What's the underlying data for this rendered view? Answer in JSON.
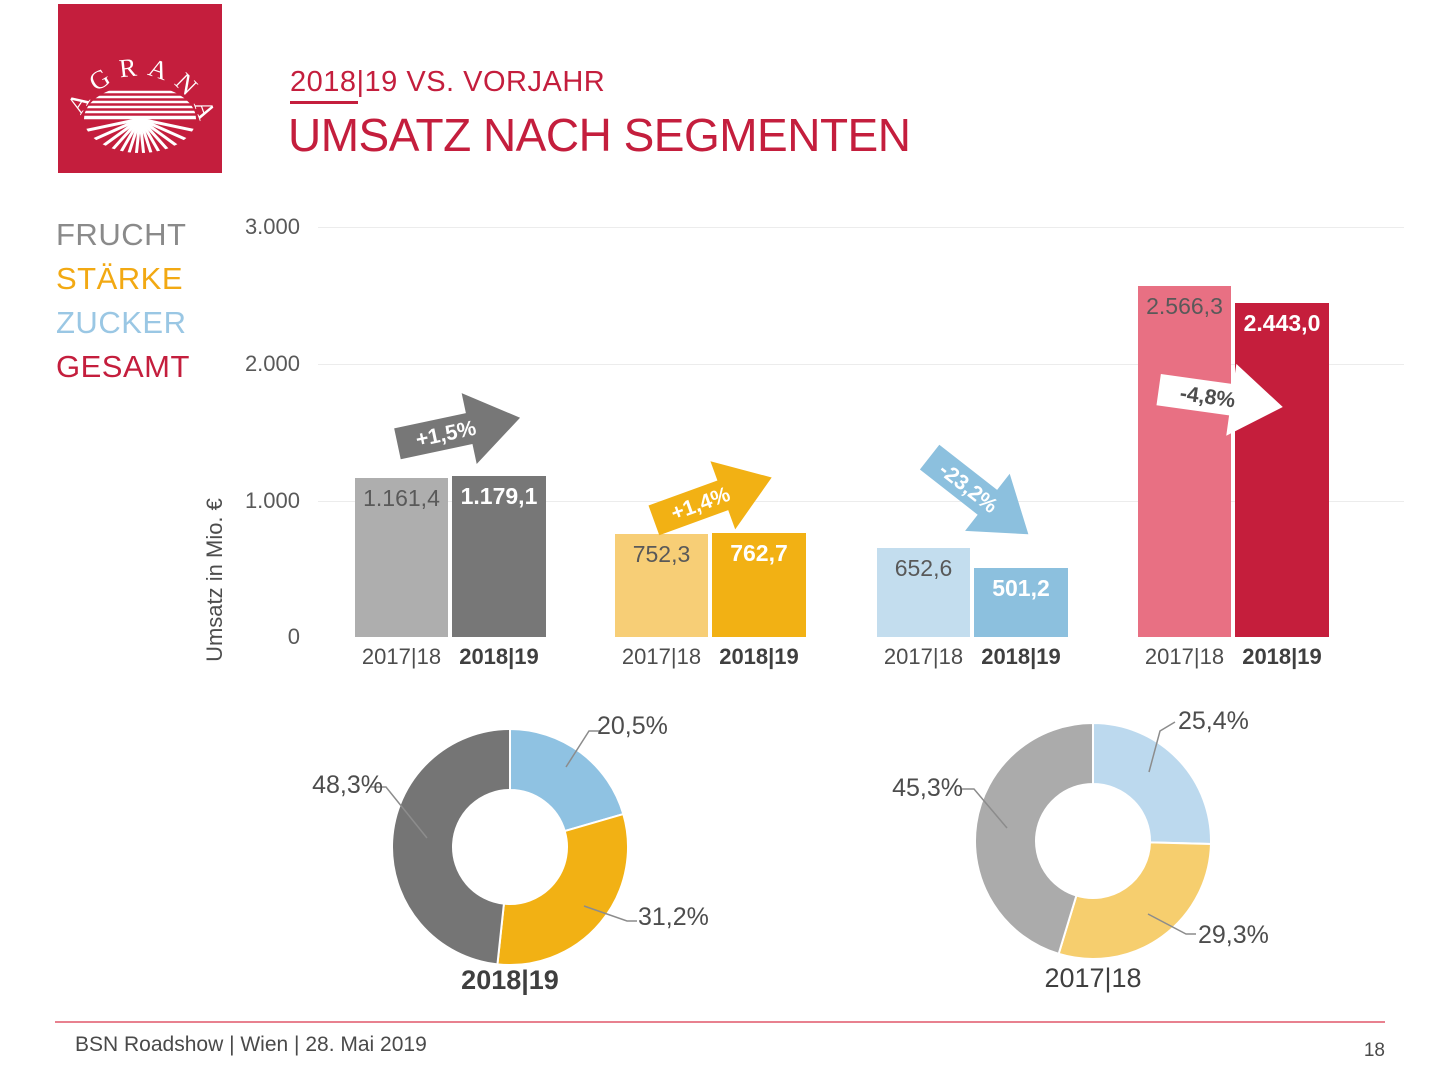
{
  "slide": {
    "logo_text": "AGRANA",
    "subtitle": "2018|19 VS. VORJAHR",
    "title": "UMSATZ NACH SEGMENTEN",
    "footer": "BSN Roadshow | Wien | 28. Mai 2019",
    "page_number": "18"
  },
  "colors": {
    "brand_red": "#C41E3D",
    "footer_line": "#E8818F",
    "grid": "#ECECEC",
    "text_dark": "#4D4D4D",
    "text_medium": "#595959"
  },
  "legend": {
    "items": [
      {
        "label": "FRUCHT",
        "color": "#8A8A8A"
      },
      {
        "label": "STÄRKE",
        "color": "#F2A913"
      },
      {
        "label": "ZUCKER",
        "color": "#9AC7E4"
      },
      {
        "label": "GESAMT",
        "color": "#C41E3D"
      }
    ]
  },
  "chart_data": [
    {
      "type": "bar",
      "title": "Umsatz nach Segmenten – 2018|19 vs. Vorjahr",
      "ylabel": "Umsatz in Mio. €",
      "ylim": [
        0,
        3000
      ],
      "yticks": [
        "0",
        "1.000",
        "2.000",
        "3.000"
      ],
      "grid": true,
      "categories": [
        "2017|18",
        "2018|19"
      ],
      "segments": [
        {
          "name": "FRUCHT",
          "values": [
            1161.4,
            1179.1
          ],
          "labels": [
            "1.161,4",
            "1.179,1"
          ],
          "colors": [
            "#AEAEAE",
            "#777777"
          ],
          "change_label": "+1,5%",
          "arrow_color": "#777777",
          "arrow_text_color": "#FFFFFF"
        },
        {
          "name": "STÄRKE",
          "values": [
            752.3,
            762.7
          ],
          "labels": [
            "752,3",
            "762,7"
          ],
          "colors": [
            "#F7CE76",
            "#F2B114"
          ],
          "change_label": "+1,4%",
          "arrow_color": "#F2B114",
          "arrow_text_color": "#FFFFFF"
        },
        {
          "name": "ZUCKER",
          "values": [
            652.6,
            501.2
          ],
          "labels": [
            "652,6",
            "501,2"
          ],
          "colors": [
            "#C3DDEE",
            "#8CC0DE"
          ],
          "change_label": "-23,2%",
          "arrow_color": "#8CC0DE",
          "arrow_text_color": "#FFFFFF"
        },
        {
          "name": "GESAMT",
          "values": [
            2566.3,
            2443.0
          ],
          "labels": [
            "2.566,3",
            "2.443,0"
          ],
          "colors": [
            "#E87083",
            "#C51E3C"
          ],
          "change_label": "-4,8%",
          "arrow_color": "#FFFFFF",
          "arrow_text_color": "#4D4D4D"
        }
      ]
    },
    {
      "type": "pie",
      "title": "2018|19",
      "slices": [
        {
          "name": "ZUCKER",
          "value": 20.5,
          "label": "20,5%",
          "color": "#8FC2E2"
        },
        {
          "name": "STÄRKE",
          "value": 31.2,
          "label": "31,2%",
          "color": "#F2B114"
        },
        {
          "name": "FRUCHT",
          "value": 48.3,
          "label": "48,3%",
          "color": "#757575"
        }
      ]
    },
    {
      "type": "pie",
      "title": "2017|18",
      "slices": [
        {
          "name": "ZUCKER",
          "value": 25.4,
          "label": "25,4%",
          "color": "#BCD9EE"
        },
        {
          "name": "STÄRKE",
          "value": 29.3,
          "label": "29,3%",
          "color": "#F6CE6E"
        },
        {
          "name": "FRUCHT",
          "value": 45.3,
          "label": "45,3%",
          "color": "#ABABAB"
        }
      ]
    }
  ]
}
